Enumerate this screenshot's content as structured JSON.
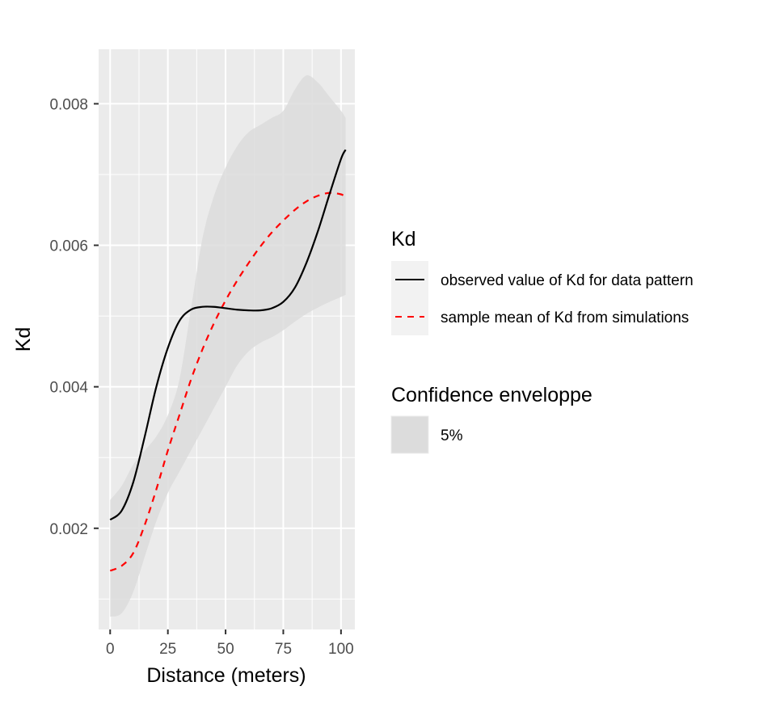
{
  "chart_data": {
    "type": "line",
    "title": "",
    "xlabel": "Distance (meters)",
    "ylabel": "Kd",
    "xlim": [
      -5,
      106
    ],
    "ylim": [
      0.00057,
      0.00877
    ],
    "x_ticks": [
      0,
      25,
      50,
      75,
      100
    ],
    "x_tick_labels": [
      "0",
      "25",
      "50",
      "75",
      "100"
    ],
    "y_ticks": [
      0.002,
      0.004,
      0.006,
      0.008
    ],
    "y_tick_labels": [
      "0.002",
      "0.004",
      "0.006",
      "0.008"
    ],
    "grid": true,
    "legend_position": "right",
    "series": [
      {
        "name": "observed value of Kd for data pattern",
        "style": "solid",
        "color": "#000000",
        "x": [
          0,
          5,
          10,
          15,
          20,
          25,
          30,
          35,
          40,
          45,
          50,
          55,
          60,
          65,
          70,
          75,
          80,
          85,
          90,
          95,
          100,
          102
        ],
        "y": [
          0.00212,
          0.00225,
          0.00265,
          0.0033,
          0.004,
          0.00455,
          0.00493,
          0.00509,
          0.00513,
          0.00513,
          0.00511,
          0.00509,
          0.00508,
          0.00508,
          0.00511,
          0.0052,
          0.0054,
          0.00575,
          0.0062,
          0.00672,
          0.00722,
          0.00735
        ]
      },
      {
        "name": "sample mean of Kd from simulations",
        "style": "dashed",
        "color": "#ff0000",
        "x": [
          0,
          5,
          10,
          15,
          20,
          25,
          30,
          35,
          40,
          45,
          50,
          55,
          60,
          65,
          70,
          75,
          80,
          85,
          90,
          95,
          100,
          102
        ],
        "y": [
          0.0014,
          0.00147,
          0.00165,
          0.00205,
          0.00255,
          0.0031,
          0.0036,
          0.0041,
          0.00453,
          0.0049,
          0.00522,
          0.0055,
          0.00575,
          0.00598,
          0.00618,
          0.00635,
          0.0065,
          0.00662,
          0.0067,
          0.00674,
          0.00672,
          0.00668
        ]
      }
    ],
    "envelope": {
      "name": "5%",
      "color": "#dcdcdc",
      "x": [
        0,
        5,
        10,
        15,
        20,
        25,
        30,
        35,
        40,
        45,
        50,
        55,
        60,
        65,
        70,
        75,
        80,
        85,
        90,
        95,
        100,
        102
      ],
      "lower": [
        0.00075,
        0.0008,
        0.0011,
        0.0016,
        0.0021,
        0.0025,
        0.0028,
        0.0031,
        0.0034,
        0.0037,
        0.004,
        0.0043,
        0.0045,
        0.00462,
        0.0047,
        0.0048,
        0.00492,
        0.00503,
        0.00512,
        0.0052,
        0.00527,
        0.0053
      ],
      "upper": [
        0.0024,
        0.0026,
        0.0029,
        0.0031,
        0.0033,
        0.0036,
        0.0041,
        0.0051,
        0.0061,
        0.0067,
        0.0071,
        0.0074,
        0.0076,
        0.0077,
        0.0078,
        0.0079,
        0.0082,
        0.0084,
        0.0083,
        0.0081,
        0.0079,
        0.0078
      ]
    },
    "legends": [
      {
        "title": "Kd",
        "entries": [
          {
            "label": "observed value of Kd for data pattern",
            "style": "solid",
            "color": "#000000"
          },
          {
            "label": "sample mean of Kd from simulations",
            "style": "dashed",
            "color": "#ff0000"
          }
        ]
      },
      {
        "title": "Confidence enveloppe",
        "entries": [
          {
            "label": "5%",
            "style": "fill",
            "color": "#dcdcdc"
          }
        ]
      }
    ],
    "panel_background": "#ebebeb",
    "grid_color": "#ffffff"
  }
}
